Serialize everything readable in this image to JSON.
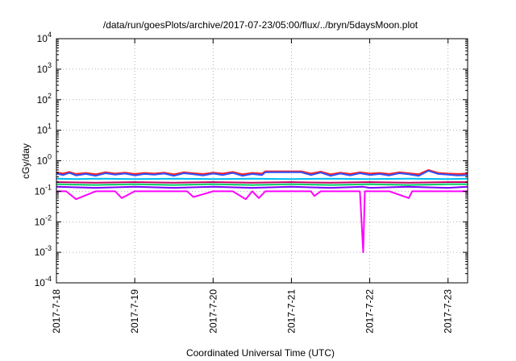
{
  "chart_data": {
    "type": "line",
    "title": "/data/run/goesPlots/archive/2017-07-23/05:00/flux/../bryn/5daysMoon.plot",
    "xlabel": "Coordinated Universal Time (UTC)",
    "ylabel": "cGy/day",
    "yscale": "log",
    "ylim": [
      0.0001,
      10000
    ],
    "xlim": [
      "2017-07-18",
      "2017-07-23 06:00"
    ],
    "y_ticks": [
      {
        "base": "10",
        "exp": "-4"
      },
      {
        "base": "10",
        "exp": "-3"
      },
      {
        "base": "10",
        "exp": "-2"
      },
      {
        "base": "10",
        "exp": "-1"
      },
      {
        "base": "10",
        "exp": "0"
      },
      {
        "base": "10",
        "exp": "1"
      },
      {
        "base": "10",
        "exp": "2"
      },
      {
        "base": "10",
        "exp": "3"
      },
      {
        "base": "10",
        "exp": "4"
      }
    ],
    "x_ticks": [
      "2017-7-18",
      "2017-7-19",
      "2017-7-20",
      "2017-7-21",
      "2017-7-22",
      "2017-7-23"
    ],
    "grid": true,
    "series": [
      {
        "color": "#ff00ff",
        "x": [
          "2017-07-18 00:00",
          "2017-07-18 03:00",
          "2017-07-18 06:00",
          "2017-07-18 12:00",
          "2017-07-18 18:00",
          "2017-07-18 20:00",
          "2017-07-19 00:00",
          "2017-07-19 06:00",
          "2017-07-19 12:00",
          "2017-07-19 16:00",
          "2017-07-19 18:00",
          "2017-07-20 00:00",
          "2017-07-20 06:00",
          "2017-07-20 10:00",
          "2017-07-20 12:00",
          "2017-07-20 14:00",
          "2017-07-20 16:00",
          "2017-07-20 17:00",
          "2017-07-20 19:00",
          "2017-07-21 00:00",
          "2017-07-21 06:00",
          "2017-07-21 07:00",
          "2017-07-21 09:00",
          "2017-07-21 12:00",
          "2017-07-21 18:00",
          "2017-07-21 21:00",
          "2017-07-21 22:00",
          "2017-07-21 22:30",
          "2017-07-22 01:00",
          "2017-07-22 06:00",
          "2017-07-22 12:00",
          "2017-07-22 13:00",
          "2017-07-22 18:00",
          "2017-07-23 00:00",
          "2017-07-23 06:00"
        ],
        "y": [
          0.1,
          0.1,
          0.055,
          0.1,
          0.1,
          0.06,
          0.1,
          0.1,
          0.1,
          0.1,
          0.065,
          0.1,
          0.1,
          0.055,
          0.1,
          0.06,
          0.1,
          0.1,
          0.1,
          0.1,
          0.1,
          0.07,
          0.1,
          0.1,
          0.1,
          0.1,
          0.001,
          0.1,
          0.1,
          0.1,
          0.06,
          0.1,
          0.1,
          0.1,
          0.1
        ]
      },
      {
        "color": "#7f00ff",
        "x": [
          "2017-07-18 00:00",
          "2017-07-18 12:00",
          "2017-07-19 00:00",
          "2017-07-19 12:00",
          "2017-07-20 00:00",
          "2017-07-20 12:00",
          "2017-07-21 00:00",
          "2017-07-21 12:00",
          "2017-07-21 22:00",
          "2017-07-22 00:00",
          "2017-07-22 12:00",
          "2017-07-23 00:00",
          "2017-07-23 06:00"
        ],
        "y": [
          0.14,
          0.13,
          0.14,
          0.13,
          0.14,
          0.13,
          0.14,
          0.13,
          0.14,
          0.13,
          0.14,
          0.13,
          0.14
        ]
      },
      {
        "color": "#00cc66",
        "x": [
          "2017-07-18 00:00",
          "2017-07-18 12:00",
          "2017-07-19 00:00",
          "2017-07-19 12:00",
          "2017-07-20 00:00",
          "2017-07-20 12:00",
          "2017-07-21 00:00",
          "2017-07-21 12:00",
          "2017-07-22 00:00",
          "2017-07-22 12:00",
          "2017-07-23 00:00",
          "2017-07-23 06:00"
        ],
        "y": [
          0.17,
          0.16,
          0.17,
          0.16,
          0.17,
          0.16,
          0.17,
          0.16,
          0.17,
          0.16,
          0.17,
          0.17
        ]
      },
      {
        "color": "#cc0066",
        "x": [
          "2017-07-18 00:00",
          "2017-07-18 12:00",
          "2017-07-19 00:00",
          "2017-07-19 12:00",
          "2017-07-20 00:00",
          "2017-07-20 12:00",
          "2017-07-21 00:00",
          "2017-07-21 12:00",
          "2017-07-22 00:00",
          "2017-07-22 12:00",
          "2017-07-23 00:00",
          "2017-07-23 06:00"
        ],
        "y": [
          0.2,
          0.19,
          0.2,
          0.19,
          0.2,
          0.19,
          0.2,
          0.19,
          0.2,
          0.19,
          0.2,
          0.2
        ]
      },
      {
        "color": "#00bbee",
        "x": [
          "2017-07-18 00:00",
          "2017-07-18 06:00",
          "2017-07-18 12:00",
          "2017-07-19 00:00",
          "2017-07-19 12:00",
          "2017-07-20 00:00",
          "2017-07-20 12:00",
          "2017-07-21 00:00",
          "2017-07-21 12:00",
          "2017-07-22 00:00",
          "2017-07-22 12:00",
          "2017-07-23 00:00",
          "2017-07-23 06:00"
        ],
        "y": [
          0.26,
          0.25,
          0.26,
          0.25,
          0.26,
          0.25,
          0.26,
          0.25,
          0.26,
          0.25,
          0.26,
          0.25,
          0.26
        ]
      },
      {
        "color": "#ff2020",
        "x": [
          "2017-07-18 00:00",
          "2017-07-18 02:00",
          "2017-07-18 04:00",
          "2017-07-18 06:00",
          "2017-07-18 09:00",
          "2017-07-18 12:00",
          "2017-07-18 15:00",
          "2017-07-18 18:00",
          "2017-07-18 21:00",
          "2017-07-19 00:00",
          "2017-07-19 03:00",
          "2017-07-19 06:00",
          "2017-07-19 09:00",
          "2017-07-19 12:00",
          "2017-07-19 15:00",
          "2017-07-19 18:00",
          "2017-07-19 21:00",
          "2017-07-20 00:00",
          "2017-07-20 03:00",
          "2017-07-20 06:00",
          "2017-07-20 09:00",
          "2017-07-20 12:00",
          "2017-07-20 15:00",
          "2017-07-20 16:00",
          "2017-07-20 17:00",
          "2017-07-20 21:00",
          "2017-07-21 00:00",
          "2017-07-21 03:00",
          "2017-07-21 06:00",
          "2017-07-21 09:00",
          "2017-07-21 12:00",
          "2017-07-21 15:00",
          "2017-07-21 18:00",
          "2017-07-21 21:00",
          "2017-07-22 00:00",
          "2017-07-22 03:00",
          "2017-07-22 06:00",
          "2017-07-22 09:00",
          "2017-07-22 12:00",
          "2017-07-22 15:00",
          "2017-07-22 18:00",
          "2017-07-22 21:00",
          "2017-07-23 00:00",
          "2017-07-23 03:00",
          "2017-07-23 06:00"
        ],
        "y": [
          0.42,
          0.38,
          0.43,
          0.37,
          0.4,
          0.36,
          0.42,
          0.38,
          0.41,
          0.37,
          0.4,
          0.38,
          0.41,
          0.36,
          0.42,
          0.39,
          0.37,
          0.41,
          0.38,
          0.43,
          0.36,
          0.4,
          0.38,
          0.45,
          0.45,
          0.45,
          0.45,
          0.45,
          0.38,
          0.44,
          0.36,
          0.41,
          0.37,
          0.42,
          0.38,
          0.4,
          0.37,
          0.42,
          0.39,
          0.36,
          0.5,
          0.4,
          0.38,
          0.37,
          0.38
        ]
      },
      {
        "color": "#3050ff",
        "x": [
          "2017-07-18 00:00",
          "2017-07-18 02:00",
          "2017-07-18 04:00",
          "2017-07-18 06:00",
          "2017-07-18 09:00",
          "2017-07-18 12:00",
          "2017-07-18 15:00",
          "2017-07-18 18:00",
          "2017-07-18 21:00",
          "2017-07-19 00:00",
          "2017-07-19 03:00",
          "2017-07-19 06:00",
          "2017-07-19 09:00",
          "2017-07-19 12:00",
          "2017-07-19 15:00",
          "2017-07-19 18:00",
          "2017-07-19 21:00",
          "2017-07-20 00:00",
          "2017-07-20 03:00",
          "2017-07-20 06:00",
          "2017-07-20 09:00",
          "2017-07-20 12:00",
          "2017-07-20 15:00",
          "2017-07-20 16:00",
          "2017-07-20 17:00",
          "2017-07-20 21:00",
          "2017-07-21 00:00",
          "2017-07-21 03:00",
          "2017-07-21 06:00",
          "2017-07-21 09:00",
          "2017-07-21 12:00",
          "2017-07-21 15:00",
          "2017-07-21 18:00",
          "2017-07-21 21:00",
          "2017-07-22 00:00",
          "2017-07-22 03:00",
          "2017-07-22 06:00",
          "2017-07-22 09:00",
          "2017-07-22 12:00",
          "2017-07-22 15:00",
          "2017-07-22 18:00",
          "2017-07-22 21:00",
          "2017-07-23 00:00",
          "2017-07-23 03:00",
          "2017-07-23 06:00"
        ],
        "y": [
          0.38,
          0.34,
          0.4,
          0.33,
          0.37,
          0.32,
          0.39,
          0.35,
          0.38,
          0.33,
          0.37,
          0.35,
          0.38,
          0.32,
          0.39,
          0.36,
          0.33,
          0.38,
          0.34,
          0.4,
          0.32,
          0.37,
          0.34,
          0.42,
          0.42,
          0.42,
          0.42,
          0.42,
          0.34,
          0.41,
          0.32,
          0.38,
          0.33,
          0.39,
          0.34,
          0.37,
          0.33,
          0.39,
          0.36,
          0.32,
          0.47,
          0.37,
          0.35,
          0.33,
          0.34
        ]
      }
    ]
  }
}
